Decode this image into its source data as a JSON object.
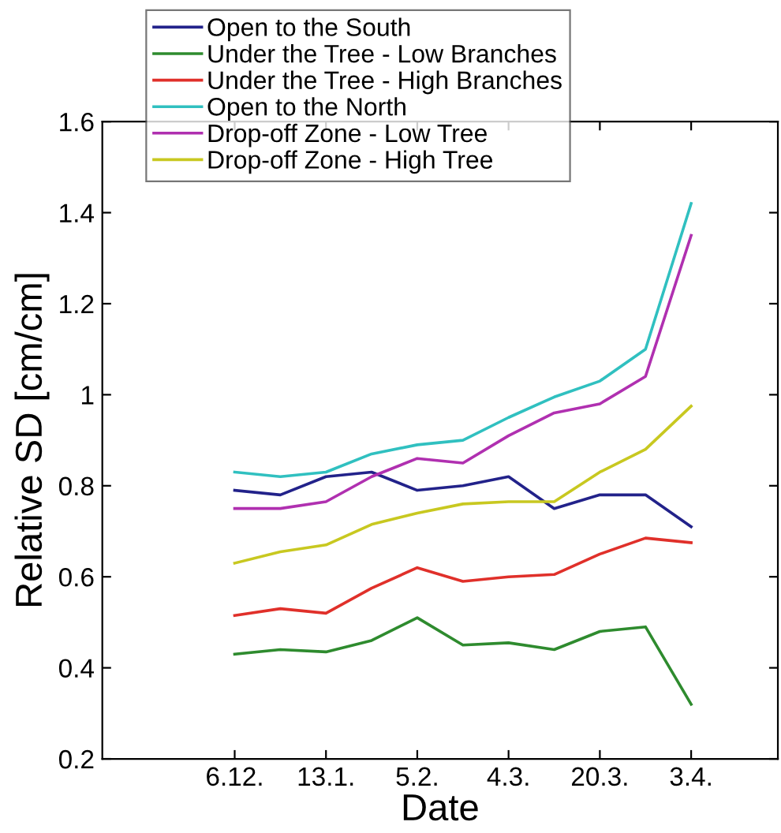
{
  "chart_data": {
    "type": "line",
    "xlabel": "Date",
    "ylabel": "Relative SD [cm/cm]",
    "categories": [
      "6.12.",
      null,
      "13.1.",
      null,
      "5.2.",
      null,
      "4.3.",
      null,
      "20.3.",
      null,
      "3.4."
    ],
    "ylim": [
      0.2,
      1.6
    ],
    "yticks": [
      {
        "value": 0.2,
        "label": "0.2"
      },
      {
        "value": 0.4,
        "label": "0.4"
      },
      {
        "value": 0.6,
        "label": "0.6"
      },
      {
        "value": 0.8,
        "label": "0.8"
      },
      {
        "value": 1,
        "label": "1"
      },
      {
        "value": 1.2,
        "label": "1.2"
      },
      {
        "value": 1.4,
        "label": "1.4"
      },
      {
        "value": 1.6,
        "label": "1.6"
      }
    ],
    "legend": "top left",
    "grid": false,
    "marker": "none",
    "line_style": "solid",
    "series": [
      {
        "name": "Open to the South",
        "color": "#22228a",
        "values": [
          0.79,
          0.78,
          0.82,
          0.83,
          0.79,
          0.8,
          0.82,
          0.75,
          0.78,
          0.78,
          0.71
        ]
      },
      {
        "name": "Under the Tree - Low Branches",
        "color": "#2e8b2e",
        "values": [
          0.43,
          0.44,
          0.435,
          0.46,
          0.51,
          0.45,
          0.455,
          0.44,
          0.48,
          0.49,
          0.32
        ]
      },
      {
        "name": "Under the Tree - High Branches",
        "color": "#e0302a",
        "values": [
          0.515,
          0.53,
          0.52,
          0.575,
          0.62,
          0.59,
          0.6,
          0.605,
          0.65,
          0.685,
          0.675
        ]
      },
      {
        "name": "Open to the North",
        "color": "#30c0c0",
        "values": [
          0.83,
          0.82,
          0.83,
          0.87,
          0.89,
          0.9,
          0.95,
          0.995,
          1.03,
          1.1,
          1.42
        ]
      },
      {
        "name": "Drop-off Zone - Low Tree",
        "color": "#b030b0",
        "values": [
          0.75,
          0.75,
          0.765,
          0.82,
          0.86,
          0.85,
          0.91,
          0.96,
          0.98,
          1.04,
          1.35
        ]
      },
      {
        "name": "Drop-off Zone - High Tree",
        "color": "#c8c820",
        "values": [
          0.63,
          0.655,
          0.67,
          0.715,
          0.74,
          0.76,
          0.765,
          0.765,
          0.83,
          0.88,
          0.975
        ]
      }
    ]
  }
}
